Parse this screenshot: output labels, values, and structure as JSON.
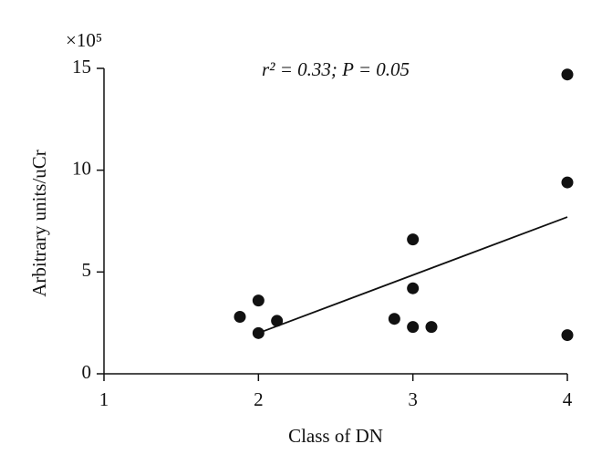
{
  "chart_data": {
    "type": "scatter",
    "multiplier": "×10⁵",
    "annotation": "r² = 0.33; P = 0.05",
    "xlabel": "Class of DN",
    "ylabel": "Arbitrary units/uCr",
    "x": [
      1.88,
      2.0,
      2.0,
      2.12,
      2.88,
      3.0,
      3.0,
      3.0,
      3.12,
      4.0,
      4.0,
      4.0
    ],
    "values": [
      2.8,
      3.6,
      2.0,
      2.6,
      2.7,
      6.6,
      4.2,
      2.3,
      2.3,
      14.7,
      9.4,
      1.9
    ],
    "color": "#111111",
    "trendline": {
      "x": [
        2,
        4
      ],
      "values": [
        2.0,
        7.7
      ]
    },
    "xlim": [
      1,
      4
    ],
    "xticks": [
      1,
      2,
      3,
      4
    ],
    "ylim": [
      0,
      15
    ],
    "yticks": [
      0,
      5,
      10,
      15
    ]
  }
}
